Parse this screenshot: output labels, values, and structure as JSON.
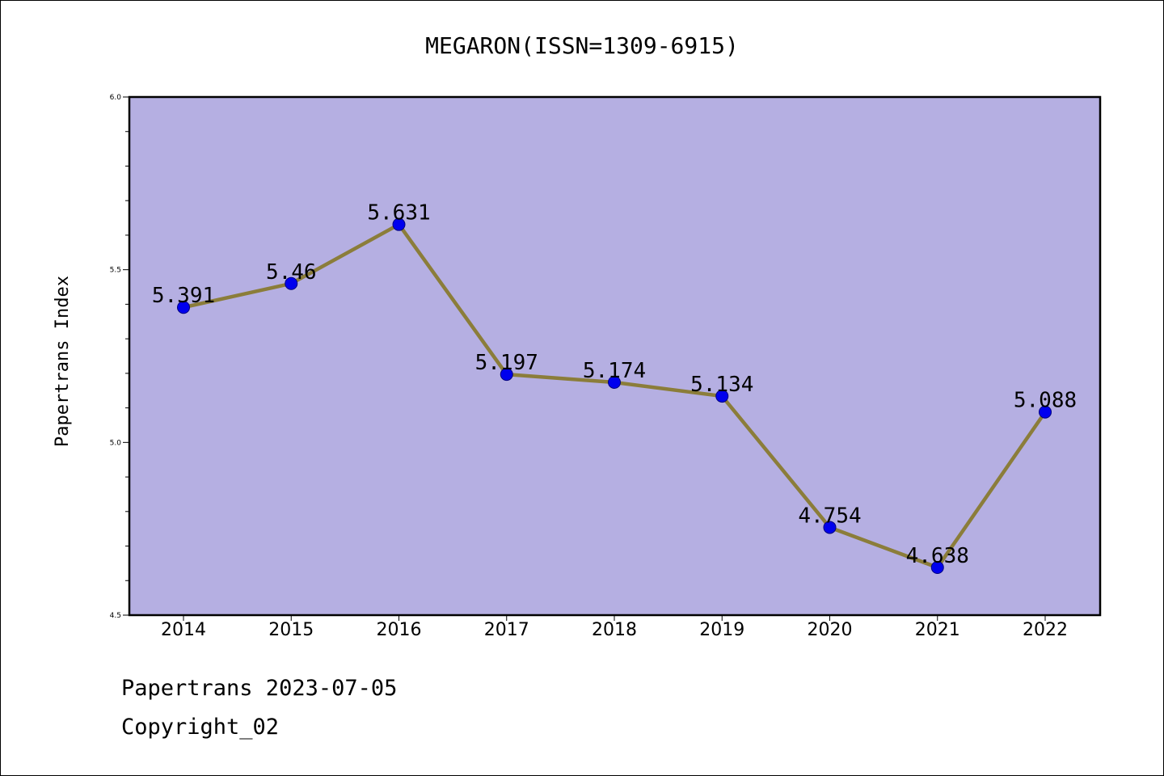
{
  "chart_data": {
    "type": "line",
    "title": "MEGARON(ISSN=1309-6915)",
    "xlabel": "",
    "ylabel": "Papertrans Index",
    "categories": [
      "2014",
      "2015",
      "2016",
      "2017",
      "2018",
      "2019",
      "2020",
      "2021",
      "2022"
    ],
    "values": [
      5.391,
      5.46,
      5.631,
      5.197,
      5.174,
      5.134,
      4.754,
      4.638,
      5.088
    ],
    "data_labels": [
      "5.391",
      "5.46",
      "5.631",
      "5.197",
      "5.174",
      "5.134",
      "4.754",
      "4.638",
      "5.088"
    ],
    "ylim": [
      4.5,
      6.0
    ],
    "y_major_ticks": [
      "4.5",
      "5.0",
      "5.5",
      "6.0"
    ],
    "grid": false,
    "legend": "none",
    "colors": {
      "plot_background": "#b5afe2",
      "line": "#8b7d3a",
      "marker": "#0000ee",
      "marker_edge": "#000080"
    }
  },
  "footer": {
    "date_line": "Papertrans 2023-07-05",
    "copyright_line": "Copyright_02"
  }
}
